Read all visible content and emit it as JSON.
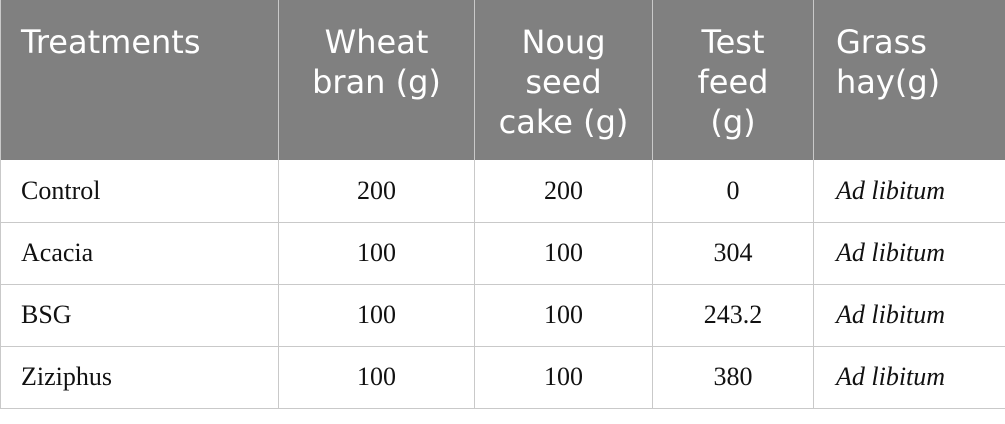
{
  "table": {
    "header": [
      "Treatments",
      "Wheat bran (g)",
      "Noug seed cake (g)",
      "Test feed (g)",
      "Grass hay(g)"
    ],
    "rows": [
      [
        "Control",
        "200",
        "200",
        "0",
        "Ad libitum"
      ],
      [
        "Acacia",
        "100",
        "100",
        "304",
        "Ad libitum"
      ],
      [
        "BSG",
        "100",
        "100",
        "243.2",
        "Ad libitum"
      ],
      [
        "Ziziphus",
        "100",
        "100",
        "380",
        "Ad libitum"
      ]
    ]
  }
}
